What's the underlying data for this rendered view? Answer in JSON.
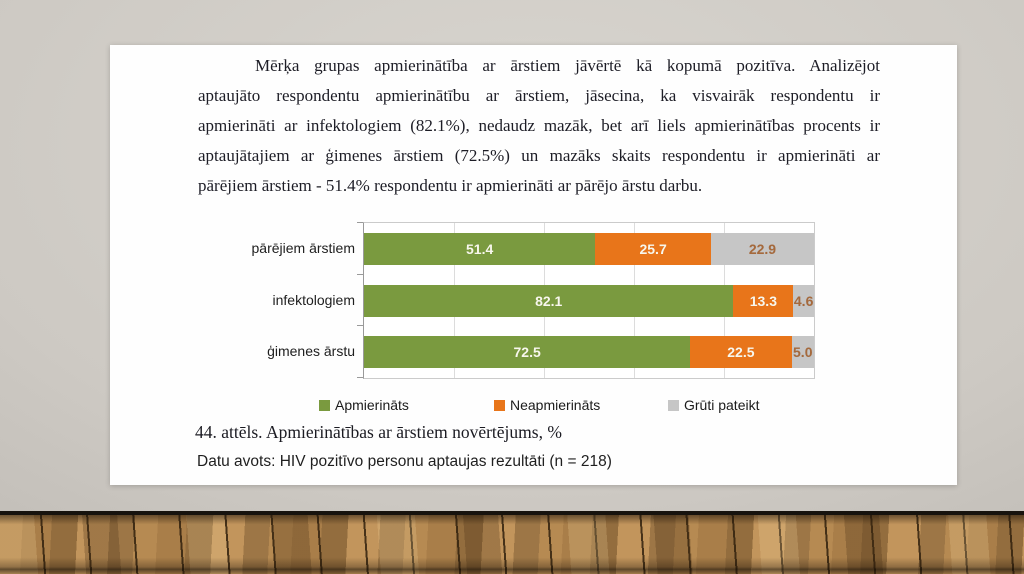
{
  "paragraph": {
    "lines": [
      "Mērķa grupas apmierinātība ar ārstiem jāvērtē kā kopumā pozitīva. Analizējot",
      "aptaujāto respondentu apmierinātību ar ārstiem, jāsecina, ka visvairāk respondentu ir",
      "apmierināti ar infektologiem (82.1%), nedaudz mazāk, bet arī liels apmierinātības procents ir",
      "aptaujātajiem ar ģimenes ārstiem (72.5%) un mazāks skaits respondentu ir apmierināti ar",
      "pārējiem ārstiem - 51.4% respondentu ir apmierināti ar pārējo ārstu darbu."
    ]
  },
  "caption": "44. attēls. Apmierinātības ar ārstiem novērtējums, %",
  "source": "Datu avots: HIV pozitīvo personu aptaujas rezultāti (n = 218)",
  "colors": {
    "green": "#7A9A3F",
    "orange": "#E8751A",
    "gray": "#C6C6C6",
    "gray_segment_label": "#A5693C",
    "light_segment_label": "#F8F7ED"
  },
  "chart_data": {
    "type": "bar",
    "orientation": "horizontal",
    "stacked": true,
    "categories": [
      "pārējiem ārstiem",
      "infektologiem",
      "ģimenes ārstu"
    ],
    "series": [
      {
        "name": "Apmierināts",
        "color": "#7A9A3F",
        "values": [
          51.4,
          82.1,
          72.5
        ]
      },
      {
        "name": "Neapmierināts",
        "color": "#E8751A",
        "values": [
          25.7,
          13.3,
          22.5
        ]
      },
      {
        "name": "Grūti pateikt",
        "color": "#C6C6C6",
        "values": [
          22.9,
          4.6,
          5.0
        ]
      }
    ],
    "xlim": [
      0,
      100
    ],
    "gridlines": [
      20,
      40,
      60,
      80,
      100
    ],
    "grid": true,
    "value_axis_labels": false,
    "legend_position": "bottom",
    "title": "44. attēls. Apmierinātības ar ārstiem novērtējums, %",
    "xlabel": "",
    "ylabel": ""
  }
}
